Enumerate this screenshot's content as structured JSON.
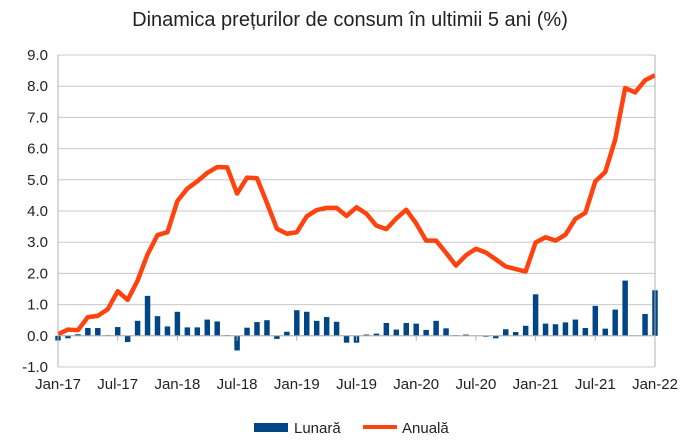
{
  "chart_data": {
    "type": "bar+line",
    "title": "Dinamica prețurilor de consum în ultimii 5 ani (%)",
    "xlabel": "",
    "ylabel": "",
    "ylim": [
      -1.0,
      9.0
    ],
    "yticks": [
      "-1.0",
      "0.0",
      "1.0",
      "2.0",
      "3.0",
      "4.0",
      "5.0",
      "6.0",
      "7.0",
      "8.0",
      "9.0"
    ],
    "xticks": [
      "Jan-17",
      "Jul-17",
      "Jan-18",
      "Jul-18",
      "Jan-19",
      "Jul-19",
      "Jan-20",
      "Jul-20",
      "Jan-21",
      "Jul-21",
      "Jan-22"
    ],
    "grid": true,
    "legend": "bottom",
    "start": "Jan-17",
    "end": "Jan-22",
    "series": [
      {
        "name": "Lunară",
        "type": "bar",
        "color": "#004586",
        "values": [
          -0.15,
          -0.08,
          0.05,
          0.25,
          0.25,
          0.02,
          0.28,
          -0.2,
          0.48,
          1.28,
          0.63,
          0.3,
          0.77,
          0.27,
          0.27,
          0.52,
          0.46,
          0.02,
          -0.47,
          0.26,
          0.44,
          0.5,
          -0.1,
          0.13,
          0.82,
          0.77,
          0.48,
          0.6,
          0.45,
          -0.22,
          -0.22,
          0.04,
          0.07,
          0.41,
          0.2,
          0.41,
          0.39,
          0.19,
          0.48,
          0.24,
          0.02,
          0.04,
          0.0,
          -0.03,
          -0.08,
          0.21,
          0.12,
          0.32,
          1.33,
          0.39,
          0.37,
          0.43,
          0.52,
          0.25,
          0.96,
          0.23,
          0.84,
          1.77,
          0.0,
          0.7,
          1.46
        ]
      },
      {
        "name": "Anuală",
        "type": "line",
        "color": "#ff420e",
        "values": [
          0.05,
          0.2,
          0.18,
          0.6,
          0.64,
          0.85,
          1.43,
          1.15,
          1.77,
          2.61,
          3.23,
          3.32,
          4.32,
          4.72,
          4.95,
          5.22,
          5.41,
          5.4,
          4.56,
          5.07,
          5.05,
          4.26,
          3.43,
          3.27,
          3.32,
          3.83,
          4.03,
          4.1,
          4.1,
          3.84,
          4.12,
          3.91,
          3.53,
          3.42,
          3.76,
          4.04,
          3.6,
          3.05,
          3.05,
          2.66,
          2.25,
          2.58,
          2.79,
          2.67,
          2.45,
          2.22,
          2.14,
          2.06,
          2.99,
          3.16,
          3.05,
          3.24,
          3.75,
          3.94,
          4.95,
          5.25,
          6.29,
          7.94,
          7.8,
          8.19,
          8.35
        ]
      }
    ]
  }
}
